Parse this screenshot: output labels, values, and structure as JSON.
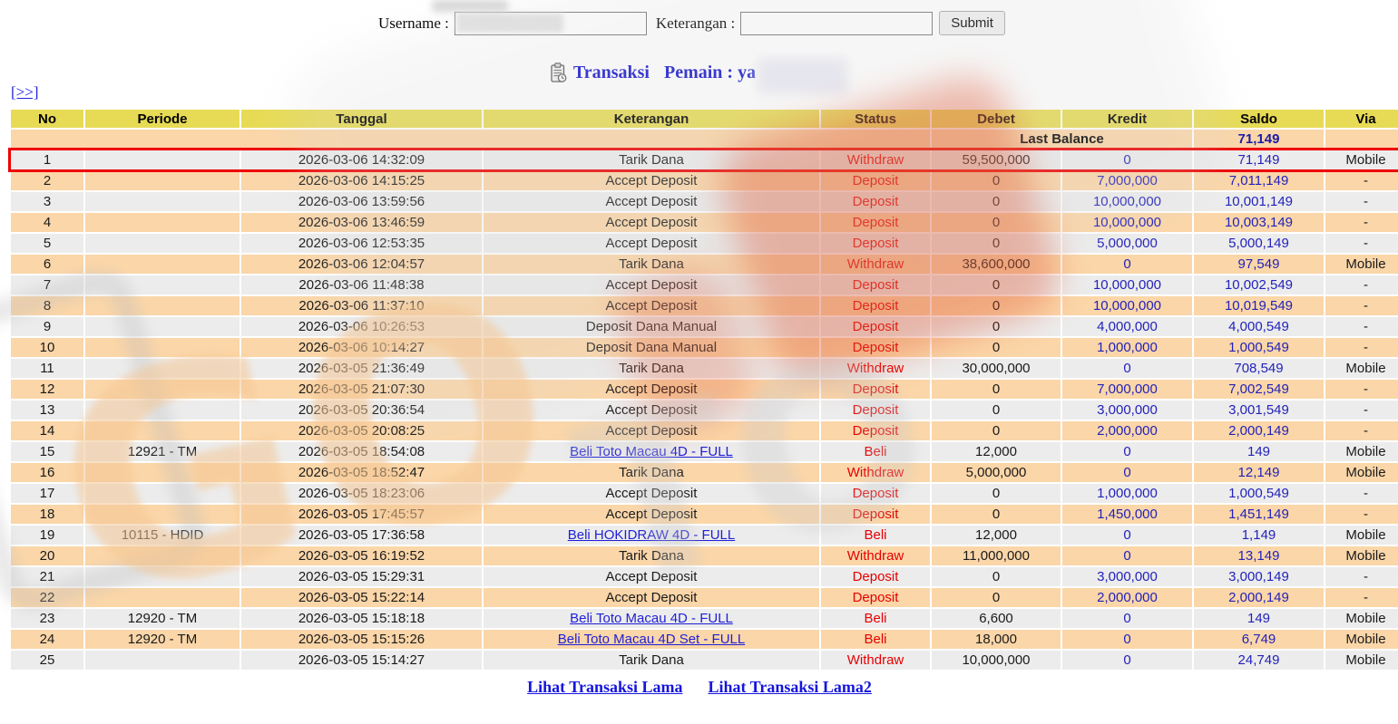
{
  "form": {
    "username_label": "Username :",
    "username_value": "",
    "keterangan_label": "Keterangan :",
    "keterangan_value": "",
    "keterangan_placeholder": "",
    "submit_label": "Submit"
  },
  "title": {
    "icon": "clipboard-icon",
    "transaksi": "Transaksi",
    "pemain": "Pemain : ya"
  },
  "nav": {
    "next_link": "[>>]"
  },
  "table": {
    "headers": [
      "No",
      "Periode",
      "Tanggal",
      "Keterangan",
      "Status",
      "Debet",
      "Kredit",
      "Saldo",
      "Via"
    ],
    "last_balance_label": "Last Balance",
    "last_balance_value": "71,149",
    "rows": [
      {
        "no": "1",
        "periode": "",
        "tanggal": "2026-03-06 14:32:09",
        "keterangan": "Tarik Dana",
        "link": false,
        "status": "Withdraw",
        "debet": "59,500,000",
        "kredit": "0",
        "saldo": "71,149",
        "via": "Mobile",
        "highlight": true
      },
      {
        "no": "2",
        "periode": "",
        "tanggal": "2026-03-06 14:15:25",
        "keterangan": "Accept Deposit",
        "link": false,
        "status": "Deposit",
        "debet": "0",
        "kredit": "7,000,000",
        "saldo": "7,011,149",
        "via": "-",
        "highlight": false
      },
      {
        "no": "3",
        "periode": "",
        "tanggal": "2026-03-06 13:59:56",
        "keterangan": "Accept Deposit",
        "link": false,
        "status": "Deposit",
        "debet": "0",
        "kredit": "10,000,000",
        "saldo": "10,001,149",
        "via": "-",
        "highlight": false
      },
      {
        "no": "4",
        "periode": "",
        "tanggal": "2026-03-06 13:46:59",
        "keterangan": "Accept Deposit",
        "link": false,
        "status": "Deposit",
        "debet": "0",
        "kredit": "10,000,000",
        "saldo": "10,003,149",
        "via": "-",
        "highlight": false
      },
      {
        "no": "5",
        "periode": "",
        "tanggal": "2026-03-06 12:53:35",
        "keterangan": "Accept Deposit",
        "link": false,
        "status": "Deposit",
        "debet": "0",
        "kredit": "5,000,000",
        "saldo": "5,000,149",
        "via": "-",
        "highlight": false
      },
      {
        "no": "6",
        "periode": "",
        "tanggal": "2026-03-06 12:04:57",
        "keterangan": "Tarik Dana",
        "link": false,
        "status": "Withdraw",
        "debet": "38,600,000",
        "kredit": "0",
        "saldo": "97,549",
        "via": "Mobile",
        "highlight": false
      },
      {
        "no": "7",
        "periode": "",
        "tanggal": "2026-03-06 11:48:38",
        "keterangan": "Accept Deposit",
        "link": false,
        "status": "Deposit",
        "debet": "0",
        "kredit": "10,000,000",
        "saldo": "10,002,549",
        "via": "-",
        "highlight": false
      },
      {
        "no": "8",
        "periode": "",
        "tanggal": "2026-03-06 11:37:10",
        "keterangan": "Accept Deposit",
        "link": false,
        "status": "Deposit",
        "debet": "0",
        "kredit": "10,000,000",
        "saldo": "10,019,549",
        "via": "-",
        "highlight": false
      },
      {
        "no": "9",
        "periode": "",
        "tanggal": "2026-03-06 10:26:53",
        "keterangan": "Deposit Dana Manual",
        "link": false,
        "status": "Deposit",
        "debet": "0",
        "kredit": "4,000,000",
        "saldo": "4,000,549",
        "via": "-",
        "highlight": false
      },
      {
        "no": "10",
        "periode": "",
        "tanggal": "2026-03-06 10:14:27",
        "keterangan": "Deposit Dana Manual",
        "link": false,
        "status": "Deposit",
        "debet": "0",
        "kredit": "1,000,000",
        "saldo": "1,000,549",
        "via": "-",
        "highlight": false
      },
      {
        "no": "11",
        "periode": "",
        "tanggal": "2026-03-05 21:36:49",
        "keterangan": "Tarik Dana",
        "link": false,
        "status": "Withdraw",
        "debet": "30,000,000",
        "kredit": "0",
        "saldo": "708,549",
        "via": "Mobile",
        "highlight": false
      },
      {
        "no": "12",
        "periode": "",
        "tanggal": "2026-03-05 21:07:30",
        "keterangan": "Accept Deposit",
        "link": false,
        "status": "Deposit",
        "debet": "0",
        "kredit": "7,000,000",
        "saldo": "7,002,549",
        "via": "-",
        "highlight": false
      },
      {
        "no": "13",
        "periode": "",
        "tanggal": "2026-03-05 20:36:54",
        "keterangan": "Accept Deposit",
        "link": false,
        "status": "Deposit",
        "debet": "0",
        "kredit": "3,000,000",
        "saldo": "3,001,549",
        "via": "-",
        "highlight": false
      },
      {
        "no": "14",
        "periode": "",
        "tanggal": "2026-03-05 20:08:25",
        "keterangan": "Accept Deposit",
        "link": false,
        "status": "Deposit",
        "debet": "0",
        "kredit": "2,000,000",
        "saldo": "2,000,149",
        "via": "-",
        "highlight": false
      },
      {
        "no": "15",
        "periode": "12921 - TM",
        "tanggal": "2026-03-05 18:54:08",
        "keterangan": "Beli Toto Macau 4D - FULL",
        "link": true,
        "status": "Beli",
        "debet": "12,000",
        "kredit": "0",
        "saldo": "149",
        "via": "Mobile",
        "highlight": false
      },
      {
        "no": "16",
        "periode": "",
        "tanggal": "2026-03-05 18:52:47",
        "keterangan": "Tarik Dana",
        "link": false,
        "status": "Withdraw",
        "debet": "5,000,000",
        "kredit": "0",
        "saldo": "12,149",
        "via": "Mobile",
        "highlight": false
      },
      {
        "no": "17",
        "periode": "",
        "tanggal": "2026-03-05 18:23:06",
        "keterangan": "Accept Deposit",
        "link": false,
        "status": "Deposit",
        "debet": "0",
        "kredit": "1,000,000",
        "saldo": "1,000,549",
        "via": "-",
        "highlight": false
      },
      {
        "no": "18",
        "periode": "",
        "tanggal": "2026-03-05 17:45:57",
        "keterangan": "Accept Deposit",
        "link": false,
        "status": "Deposit",
        "debet": "0",
        "kredit": "1,450,000",
        "saldo": "1,451,149",
        "via": "-",
        "highlight": false
      },
      {
        "no": "19",
        "periode": "10115 - HDID",
        "tanggal": "2026-03-05 17:36:58",
        "keterangan": "Beli HOKIDRAW 4D - FULL",
        "link": true,
        "status": "Beli",
        "debet": "12,000",
        "kredit": "0",
        "saldo": "1,149",
        "via": "Mobile",
        "highlight": false
      },
      {
        "no": "20",
        "periode": "",
        "tanggal": "2026-03-05 16:19:52",
        "keterangan": "Tarik Dana",
        "link": false,
        "status": "Withdraw",
        "debet": "11,000,000",
        "kredit": "0",
        "saldo": "13,149",
        "via": "Mobile",
        "highlight": false
      },
      {
        "no": "21",
        "periode": "",
        "tanggal": "2026-03-05 15:29:31",
        "keterangan": "Accept Deposit",
        "link": false,
        "status": "Deposit",
        "debet": "0",
        "kredit": "3,000,000",
        "saldo": "3,000,149",
        "via": "-",
        "highlight": false
      },
      {
        "no": "22",
        "periode": "",
        "tanggal": "2026-03-05 15:22:14",
        "keterangan": "Accept Deposit",
        "link": false,
        "status": "Deposit",
        "debet": "0",
        "kredit": "2,000,000",
        "saldo": "2,000,149",
        "via": "-",
        "highlight": false
      },
      {
        "no": "23",
        "periode": "12920 - TM",
        "tanggal": "2026-03-05 15:18:18",
        "keterangan": "Beli Toto Macau 4D - FULL",
        "link": true,
        "status": "Beli",
        "debet": "6,600",
        "kredit": "0",
        "saldo": "149",
        "via": "Mobile",
        "highlight": false
      },
      {
        "no": "24",
        "periode": "12920 - TM",
        "tanggal": "2026-03-05 15:15:26",
        "keterangan": "Beli Toto Macau 4D Set - FULL",
        "link": true,
        "status": "Beli",
        "debet": "18,000",
        "kredit": "0",
        "saldo": "6,749",
        "via": "Mobile",
        "highlight": false
      },
      {
        "no": "25",
        "periode": "",
        "tanggal": "2026-03-05 15:14:27",
        "keterangan": "Tarik Dana",
        "link": false,
        "status": "Withdraw",
        "debet": "10,000,000",
        "kredit": "0",
        "saldo": "24,749",
        "via": "Mobile",
        "highlight": false
      }
    ]
  },
  "footer": {
    "link1": "Lihat Transaksi Lama",
    "link2": "Lihat Transaksi Lama2"
  },
  "colors": {
    "header_yellow": "#e7db55",
    "row_peach": "#fbd6a8",
    "row_gray": "#ececec",
    "status_red": "#e60000",
    "value_blue": "#2222bb",
    "link_blue": "#1f1fd8",
    "highlight_red": "#ee0000",
    "title_blue": "#1212cc"
  }
}
